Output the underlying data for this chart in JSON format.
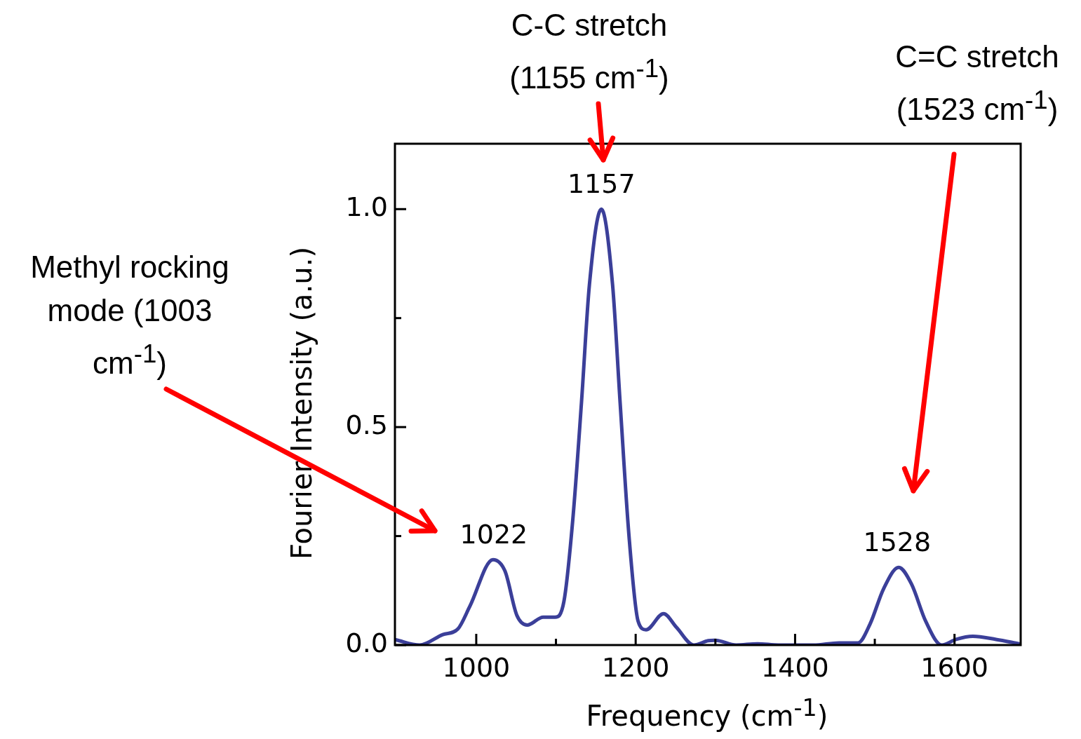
{
  "chart_data": {
    "type": "line",
    "xlabel": "Frequency (cm$^{-1}$)",
    "ylabel": "Fourier Intensity (a.u.)",
    "x": [
      899,
      929,
      958,
      977,
      992,
      1021,
      1036,
      1051,
      1064,
      1084,
      1099,
      1110,
      1121,
      1132,
      1142,
      1157,
      1171,
      1180.5,
      1191.6,
      1203,
      1213,
      1235,
      1251,
      1273,
      1291,
      1300,
      1326,
      1353,
      1379,
      1423,
      1455,
      1479,
      1494,
      1511,
      1530,
      1546,
      1564,
      1584,
      1602,
      1623,
      1652,
      1681
    ],
    "series": [
      {
        "color": "#3b3f99",
        "values": [
          0.012,
          0,
          0.024,
          0.037,
          0.089,
          0.196,
          0.17,
          0.068,
          0.046,
          0.064,
          0.064,
          0.1,
          0.285,
          0.556,
          0.827,
          1.0,
          0.827,
          0.556,
          0.251,
          0.055,
          0.035,
          0.072,
          0.041,
          0,
          0.01,
          0.011,
          0,
          0.003,
          0,
          0,
          0.005,
          0.005,
          0.048,
          0.129,
          0.178,
          0.14,
          0.054,
          0,
          0.013,
          0.02,
          0.013,
          0.003
        ]
      }
    ],
    "xlim": [
      898,
      1683
    ],
    "ylim": [
      0,
      1.15
    ],
    "xticks": [
      1000,
      {
        "value": 1100,
        "label": null
      },
      1200,
      {
        "value": 1300,
        "label": null
      },
      1400,
      {
        "value": 1500,
        "label": null
      },
      1600
    ],
    "yticks": [
      {
        "value": 0,
        "label": "0.0"
      },
      {
        "value": 0.25,
        "label": null
      },
      {
        "value": 0.5,
        "label": "0.5"
      },
      {
        "value": 0.75,
        "label": null
      },
      {
        "value": 1,
        "label": "1.0"
      }
    ],
    "marker": "none",
    "line_style": "solid",
    "legend": false,
    "grid": false,
    "annotations": [
      {
        "text": "1022",
        "x": 1022,
        "y": 0.196
      },
      {
        "text": "1157",
        "x": 1157,
        "y": 1.0
      },
      {
        "text": "1528",
        "x": 1528,
        "y": 0.178
      },
      "Methyl rocking mode (1003 cm$^{-1}$)",
      "C-C stretch (1155 cm$^{-1}$)",
      "C=C stretch (1523 cm$^{-1}$)"
    ]
  }
}
